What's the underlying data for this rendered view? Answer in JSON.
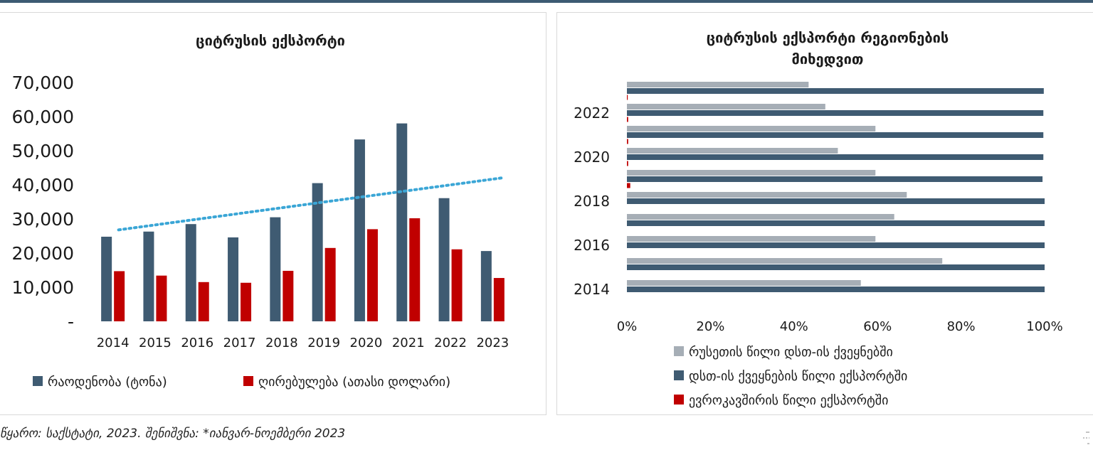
{
  "colors": {
    "frame_line": "#3d5b73",
    "quantity": "#3f5b72",
    "value": "#c00000",
    "russia_share": "#a6aeb6",
    "cis_share": "#3f5b72",
    "eu_share": "#c00000",
    "trend": "#3ba6d6"
  },
  "left_chart": {
    "title": "ციტრუსის ექსპორტი",
    "legend": [
      "რაოდენობა (ტონა)",
      "ღირებულება (ათასი დოლარი)"
    ]
  },
  "right_chart": {
    "title_line1": "ციტრუსის ექსპორტი რეგიონების",
    "title_line2": "მიხედვით",
    "legend": [
      "რუსეთის წილი დსთ-ის ქვეყნებში",
      "დსთ-ის ქვეყნების წილი ექსპორტში",
      "ევროკავშირის წილი ექსპორტში"
    ]
  },
  "footer": {
    "source": "წყარო: საქსტატი, 2023. შენიშვნა: *იანვარ-ნოემბერი 2023"
  },
  "chart_data": [
    {
      "type": "bar",
      "title": "ციტრუსის ექსპორტი",
      "categories": [
        "2014",
        "2015",
        "2016",
        "2017",
        "2018",
        "2019",
        "2020",
        "2021",
        "2022",
        "2023"
      ],
      "series": [
        {
          "name": "რაოდენობა (ტონა)",
          "values": [
            24800,
            26300,
            28500,
            24600,
            30500,
            40500,
            53300,
            58000,
            36100,
            20600
          ]
        },
        {
          "name": "ღირებულება (ათასი დოლარი)",
          "values": [
            14700,
            13400,
            11500,
            11300,
            14800,
            21500,
            27000,
            30200,
            21100,
            12700
          ]
        }
      ],
      "trendline": {
        "of": "რაოდენობა (ტონა)",
        "style": "dotted",
        "start": 26800,
        "end": 42000
      },
      "y_ticks": [
        "-",
        "10,000",
        "20,000",
        "30,000",
        "40,000",
        "50,000",
        "60,000",
        "70,000"
      ],
      "ylim": [
        0,
        70000
      ],
      "grid": false,
      "legend_position": "bottom"
    },
    {
      "type": "bar",
      "orientation": "horizontal",
      "title": "ციტრუსის ექსპორტი რეგიონების მიხედვით",
      "categories": [
        "2014",
        "2015",
        "2016",
        "2017",
        "2018",
        "2019",
        "2020",
        "2021",
        "2022",
        "2023"
      ],
      "tick_labels_y": [
        "2014",
        "2016",
        "2018",
        "2020",
        "2022"
      ],
      "series": [
        {
          "name": "რუსეთის წილი დსთ-ის ქვეყნებში",
          "values": [
            56,
            75.5,
            59.5,
            64,
            67,
            59.5,
            50.5,
            59.5,
            47.5,
            43.5
          ]
        },
        {
          "name": "დსთ-ის ქვეყნების წილი ექსპორტში",
          "values": [
            100,
            100,
            100,
            100,
            100,
            99.5,
            99.7,
            99.7,
            99.7,
            99.8
          ]
        },
        {
          "name": "ევროკავშირის წილი ექსპორტში",
          "values": [
            0,
            0,
            0,
            0,
            0,
            0.8,
            0.3,
            0.3,
            0.3,
            0.2
          ]
        }
      ],
      "x_ticks": [
        "0%",
        "20%",
        "40%",
        "60%",
        "80%",
        "100%"
      ],
      "xlim": [
        0,
        100
      ],
      "grid": false,
      "legend_position": "bottom"
    }
  ]
}
